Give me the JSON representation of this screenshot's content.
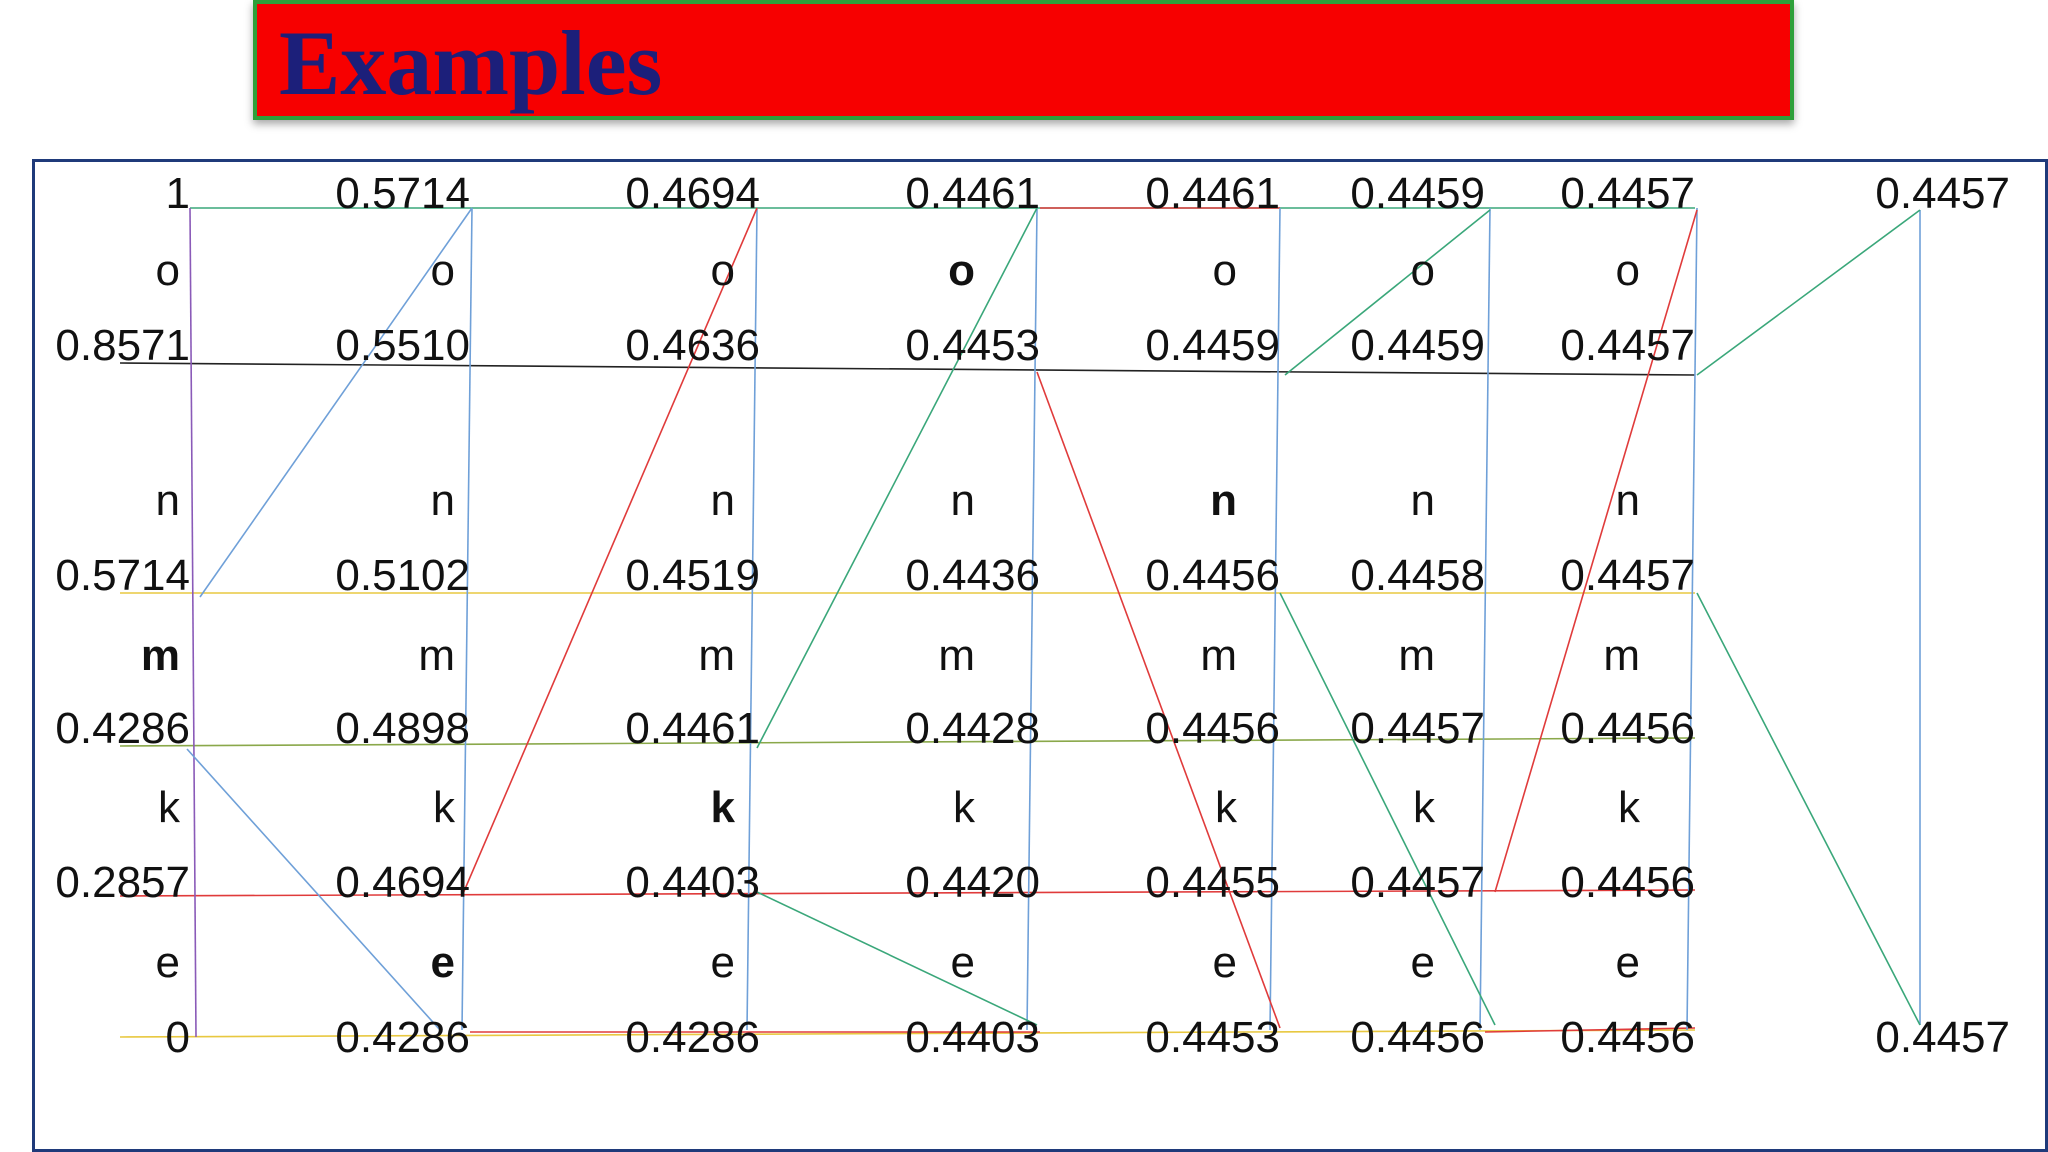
{
  "title": "Examples",
  "colors": {
    "banner_fill": "#f70000",
    "banner_border": "#2ea03a",
    "title_text": "#1c1f7a",
    "frame": "#1f3a7a",
    "line_black": "#222222",
    "line_blue": "#6fa0d8",
    "line_red": "#e03b3b",
    "line_green": "#3aa77a",
    "line_yellow": "#e8c840",
    "line_olive": "#8aa84a",
    "line_purple": "#8a5ab8"
  },
  "columns": [
    {
      "values": [
        "1",
        "0.8571",
        "0.5714",
        "0.4286",
        "0.2857",
        "0"
      ],
      "letters": [
        "o",
        "n",
        "m",
        "k",
        "e"
      ],
      "bold_letter": "m"
    },
    {
      "values": [
        "0.5714",
        "0.5510",
        "0.5102",
        "0.4898",
        "0.4694",
        "0.4286"
      ],
      "letters": [
        "o",
        "n",
        "m",
        "k",
        "e"
      ],
      "bold_letter": "e"
    },
    {
      "values": [
        "0.4694",
        "0.4636",
        "0.4519",
        "0.4461",
        "0.4403",
        "0.4286"
      ],
      "letters": [
        "o",
        "n",
        "m",
        "k",
        "e"
      ],
      "bold_letter": "k"
    },
    {
      "values": [
        "0.4461",
        "0.4453",
        "0.4436",
        "0.4428",
        "0.4420",
        "0.4403"
      ],
      "letters": [
        "o",
        "n",
        "m",
        "k",
        "e"
      ],
      "bold_letter": "o"
    },
    {
      "values": [
        "0.4461",
        "0.4459",
        "0.4456",
        "0.4456",
        "0.4455",
        "0.4453"
      ],
      "letters": [
        "o",
        "n",
        "m",
        "k",
        "e"
      ],
      "bold_letter": "n"
    },
    {
      "values": [
        "0.4459",
        "0.4459",
        "0.4458",
        "0.4457",
        "0.4457",
        "0.4456"
      ],
      "letters": [
        "o",
        "n",
        "m",
        "k",
        "e"
      ],
      "bold_letter": null
    },
    {
      "values": [
        "0.4457",
        "0.4457",
        "0.4457",
        "0.4456",
        "0.4456",
        "0.4456"
      ],
      "letters": [
        "o",
        "n",
        "m",
        "k",
        "e"
      ],
      "bold_letter": null
    }
  ],
  "final": {
    "top": "0.4457",
    "bottom": "0.4457"
  }
}
